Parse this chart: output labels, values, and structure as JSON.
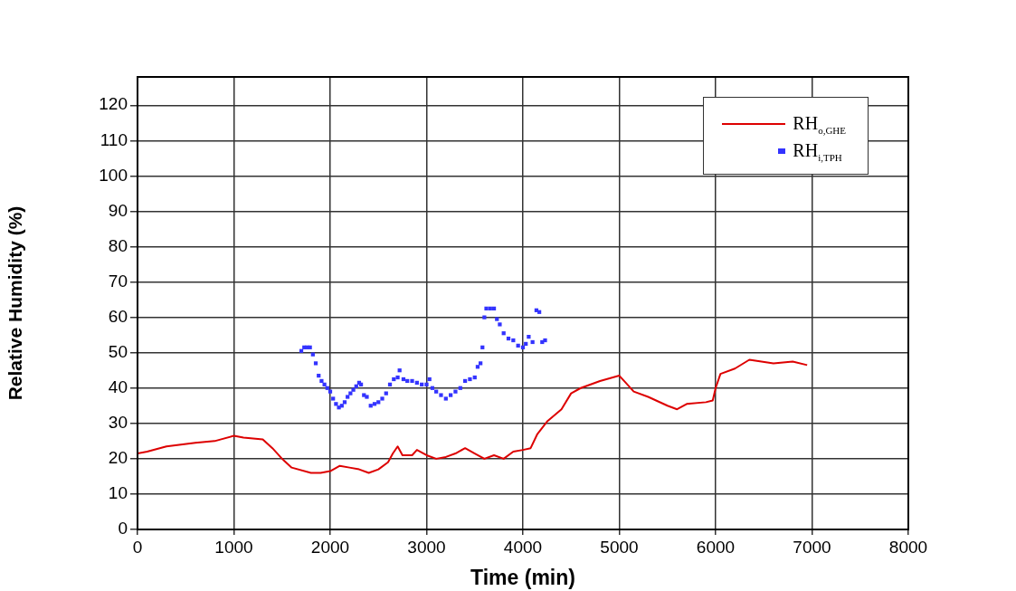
{
  "chart_data": {
    "type": "line",
    "xlabel": "Time (min)",
    "ylabel": "Relative Humidity (%)",
    "xlim": [
      0,
      8000
    ],
    "xticks": [
      0,
      1000,
      2000,
      3000,
      4000,
      5000,
      6000,
      7000,
      8000
    ],
    "ylim": [
      0,
      128
    ],
    "yticks": [
      0,
      10,
      20,
      30,
      40,
      50,
      60,
      70,
      80,
      90,
      100,
      110,
      120
    ],
    "grid": true,
    "legend": "top right",
    "line_style": "solid",
    "series": [
      {
        "name": "RH$_{o,GHE}$",
        "type": "line",
        "marker": "none",
        "color": "#dd0000",
        "x": [
          0,
          100,
          300,
          600,
          800,
          1000,
          1100,
          1300,
          1400,
          1500,
          1600,
          1800,
          1900,
          2000,
          2100,
          2200,
          2300,
          2400,
          2500,
          2600,
          2650,
          2700,
          2750,
          2850,
          2900,
          3000,
          3100,
          3200,
          3300,
          3400,
          3500,
          3600,
          3700,
          3800,
          3900,
          4000,
          4080,
          4150,
          4250,
          4400,
          4500,
          4600,
          4800,
          5000,
          5050,
          5150,
          5300,
          5500,
          5600,
          5700,
          5900,
          5970,
          6000,
          6050,
          6200,
          6350,
          6600,
          6800,
          6950
        ],
        "values": [
          21.5,
          22,
          23.5,
          24.5,
          25,
          26.5,
          26,
          25.5,
          23,
          20,
          17.5,
          16,
          16,
          16.5,
          18,
          17.5,
          17,
          16,
          17,
          19,
          21.5,
          23.5,
          21,
          21,
          22.5,
          21,
          20,
          20.5,
          21.5,
          23,
          21.5,
          20,
          21,
          20,
          22,
          22.5,
          23,
          27,
          30.5,
          34,
          38.5,
          40,
          42,
          43.5,
          42,
          39,
          37.5,
          35,
          34,
          35.5,
          36,
          36.5,
          40,
          44,
          45.5,
          48,
          47,
          47.5,
          46.5
        ]
      },
      {
        "name": "RH$_{i,TPH}$",
        "type": "scatter",
        "marker": "square",
        "color": "#3333ff",
        "x": [
          1700,
          1730,
          1760,
          1790,
          1820,
          1850,
          1880,
          1910,
          1940,
          1970,
          2000,
          2030,
          2060,
          2090,
          2120,
          2150,
          2180,
          2210,
          2240,
          2270,
          2300,
          2320,
          2350,
          2380,
          2420,
          2460,
          2500,
          2540,
          2580,
          2620,
          2660,
          2700,
          2720,
          2760,
          2800,
          2850,
          2900,
          2950,
          3000,
          3030,
          3060,
          3100,
          3150,
          3200,
          3250,
          3300,
          3350,
          3400,
          3450,
          3500,
          3530,
          3560,
          3580,
          3600,
          3620,
          3660,
          3700,
          3730,
          3760,
          3800,
          3850,
          3900,
          3950,
          4000,
          4030,
          4060,
          4100,
          4140,
          4170,
          4200,
          4230
        ],
        "values": [
          50.5,
          51.5,
          51.5,
          51.5,
          49.5,
          47,
          43.5,
          42,
          41,
          40,
          39,
          37,
          35.5,
          34.5,
          35,
          36,
          37.5,
          38.5,
          39.5,
          40.5,
          41.5,
          41,
          38,
          37.5,
          35,
          35.5,
          36,
          37,
          38.5,
          41,
          42.5,
          43,
          45,
          42.5,
          42,
          42,
          41.5,
          41,
          41,
          42.5,
          40,
          39,
          38,
          37,
          38,
          39,
          40,
          42,
          42.5,
          43,
          46,
          47,
          51.5,
          60,
          62.5,
          62.5,
          62.5,
          59.5,
          58,
          55.5,
          54,
          53.5,
          52,
          51.5,
          52.5,
          54.5,
          53,
          62,
          61.5,
          53,
          53.5
        ]
      }
    ]
  }
}
